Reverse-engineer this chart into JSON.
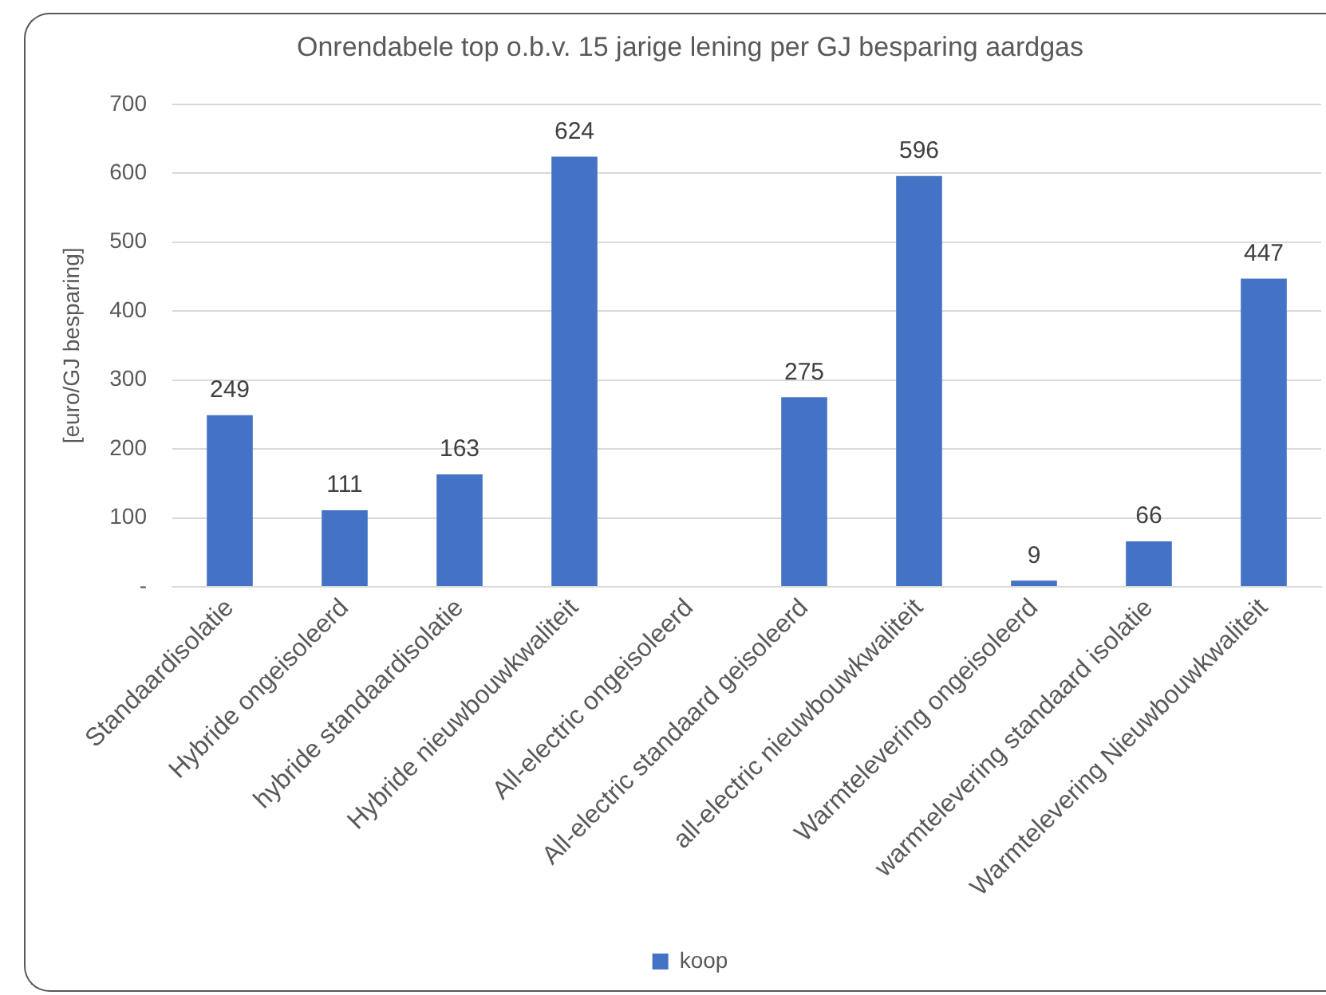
{
  "chart_data": {
    "type": "bar",
    "title": "Onrendabele top o.b.v. 15 jarige lening per GJ besparing aardgas",
    "ylabel": "[euro/GJ besparing]",
    "categories": [
      "Standaardisolatie",
      "Hybride ongeisoleerd",
      "hybride standaardisolatie",
      "Hybride nieuwbouwkwaliteit",
      "All-electric ongeisoleerd",
      "All-electric standaard geisoleerd",
      "all-electric nieuwbouwkwaliteit",
      "Warmtelevering ongeisoleerd",
      "warmtelevering standaard isolatie",
      "Warmtelevering Nieuwbouwkwaliteit"
    ],
    "series": [
      {
        "name": "koop",
        "color": "#4472c4",
        "values": [
          249,
          111,
          163,
          624,
          null,
          275,
          596,
          9,
          66,
          447
        ]
      }
    ],
    "ylim": [
      0,
      700
    ],
    "yticks": [
      {
        "value": 0,
        "label": "-"
      },
      100,
      200,
      300,
      400,
      500,
      600,
      700
    ],
    "grid": "y",
    "legend": "bottom",
    "data_labels": true
  }
}
